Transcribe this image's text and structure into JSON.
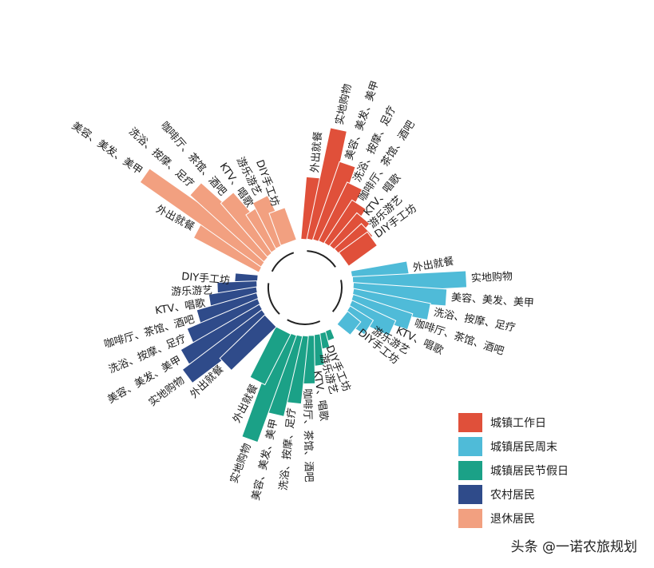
{
  "chart_data": {
    "type": "radial-bar",
    "title": "",
    "groups": [
      {
        "name": "城镇工作日",
        "color": "#e0503a",
        "categories": [
          "外出就餐",
          "实地购物",
          "美容、美发、美甲",
          "洗浴、按摩、足疗",
          "咖啡厅、茶馆、酒吧",
          "KTV、唱歌",
          "游乐游艺",
          "DIY手工坊"
        ],
        "values": [
          110,
          200,
          145,
          115,
          90,
          75,
          65,
          62
        ]
      },
      {
        "name": "城镇居民周末",
        "color": "#4fbbd8",
        "categories": [
          "外出就餐",
          "实地购物",
          "美容、美发、美甲",
          "洗浴、按摩、足疗",
          "咖啡厅、茶馆、酒吧",
          "KTV、唱歌",
          "游乐游艺",
          "DIY手工坊"
        ],
        "values": [
          100,
          200,
          165,
          138,
          110,
          85,
          48,
          30
        ]
      },
      {
        "name": "城镇居民节假日",
        "color": "#1ba187",
        "categories": [
          "DIY手工坊",
          "游乐游艺",
          "KTV、唱歌",
          "咖啡厅、茶馆、酒吧",
          "洗浴、按摩、足疗",
          "美容、美发、美甲",
          "实地购物",
          "外出就餐"
        ],
        "values": [
          18,
          28,
          55,
          85,
          120,
          145,
          200,
          100
        ]
      },
      {
        "name": "农村居民",
        "color": "#2f4b8a",
        "categories": [
          "DIY手工坊",
          "游乐游艺",
          "KTV、唱歌",
          "咖啡厅、茶馆、酒吧",
          "洗浴、按摩、足疗",
          "美容、美发、美甲",
          "实地购物",
          "外出就餐"
        ],
        "values": [
          40,
          70,
          85,
          110,
          135,
          160,
          175,
          110
        ]
      },
      {
        "name": "退休居民",
        "color": "#f2a080",
        "categories": [
          "外出就餐",
          "美容、美发、美甲",
          "洗浴、按摩、足疗",
          "咖啡厅、茶馆、酒吧",
          "KTV、唱歌",
          "游乐游艺",
          "DIY手工坊"
        ],
        "values": [
          130,
          260,
          175,
          125,
          80,
          90,
          60
        ]
      }
    ],
    "legend": {
      "position": "bottom-right",
      "items": [
        "城镇工作日",
        "城镇居民周末",
        "城镇居民节假日",
        "农村居民",
        "退休居民"
      ]
    }
  },
  "watermark": "头条 @一诺农旅规划"
}
